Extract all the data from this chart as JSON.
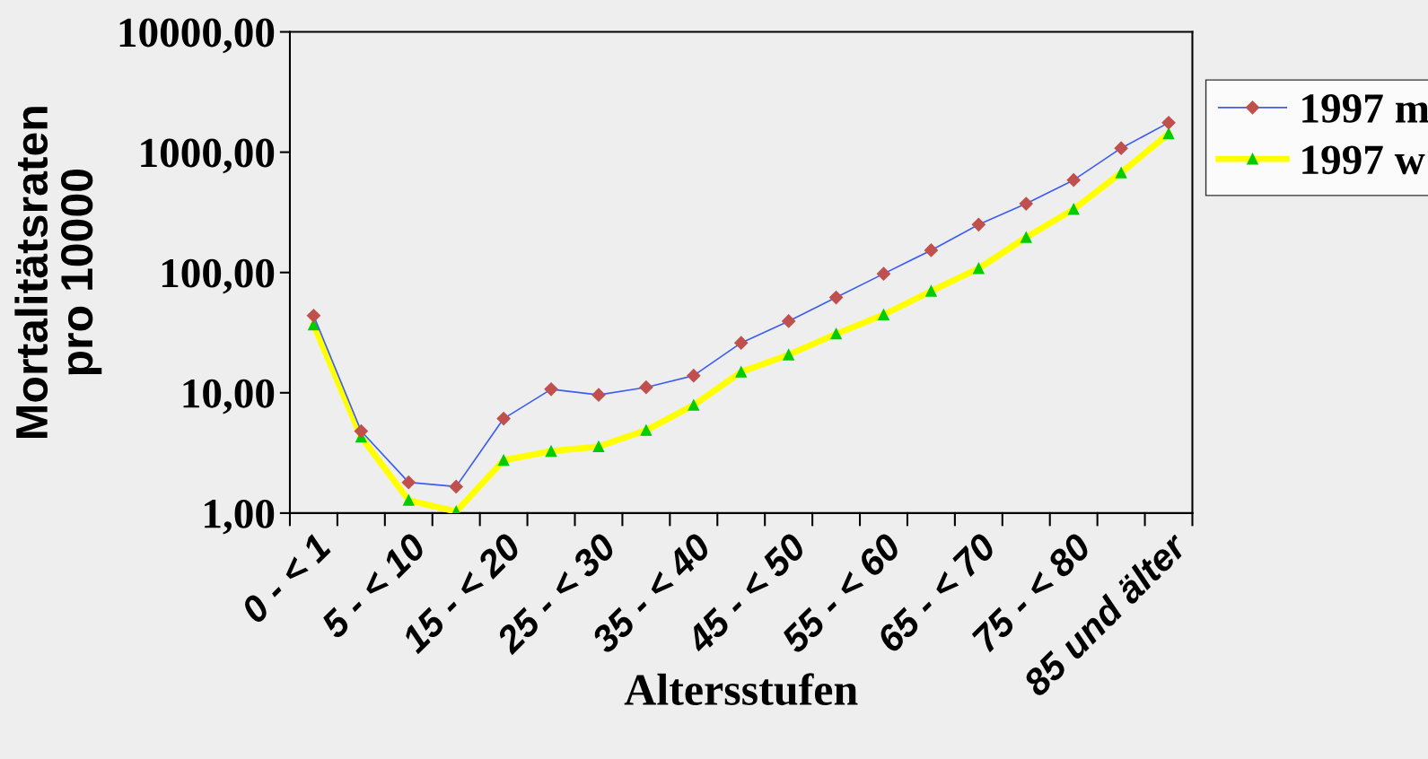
{
  "chart_data": {
    "type": "line",
    "xlabel": "Altersstufen",
    "ylabel": "Mortalitätsraten\npro 10000",
    "categories": [
      "0 - < 1",
      null,
      "5 - < 10",
      null,
      "15 - < 20",
      null,
      "25 - < 30",
      null,
      "35 - < 40",
      null,
      "45 - < 50",
      null,
      "55 - < 60",
      null,
      "65 - < 70",
      null,
      "75 - < 80",
      null,
      "85 und älter"
    ],
    "series": [
      {
        "name": "1997 m",
        "color": "#3c5ef0",
        "marker": "diamond",
        "values": [
          43.8,
          4.8,
          1.8,
          1.66,
          6.1,
          10.7,
          9.6,
          11.1,
          13.9,
          26,
          39.4,
          62,
          97.6,
          153,
          250,
          373,
          587,
          1080,
          1758
        ]
      },
      {
        "name": "1997 w",
        "color": "#ffff00",
        "marker": "triangle",
        "values": [
          36.8,
          4.3,
          1.28,
          1.03,
          2.75,
          3.27,
          3.57,
          4.88,
          7.9,
          14.9,
          20.7,
          30.9,
          44.6,
          70.1,
          108,
          196,
          336,
          675,
          1427
        ]
      }
    ],
    "log": true,
    "ylim": [
      1,
      10000
    ],
    "yticks": [
      {
        "value": 1,
        "label": "1,00"
      },
      {
        "value": 10,
        "label": "10,00"
      },
      {
        "value": 100,
        "label": "100,00"
      },
      {
        "value": 1000,
        "label": "1000,00"
      },
      {
        "value": 10000,
        "label": "10000,00"
      }
    ],
    "grid": false,
    "legend": "right"
  }
}
